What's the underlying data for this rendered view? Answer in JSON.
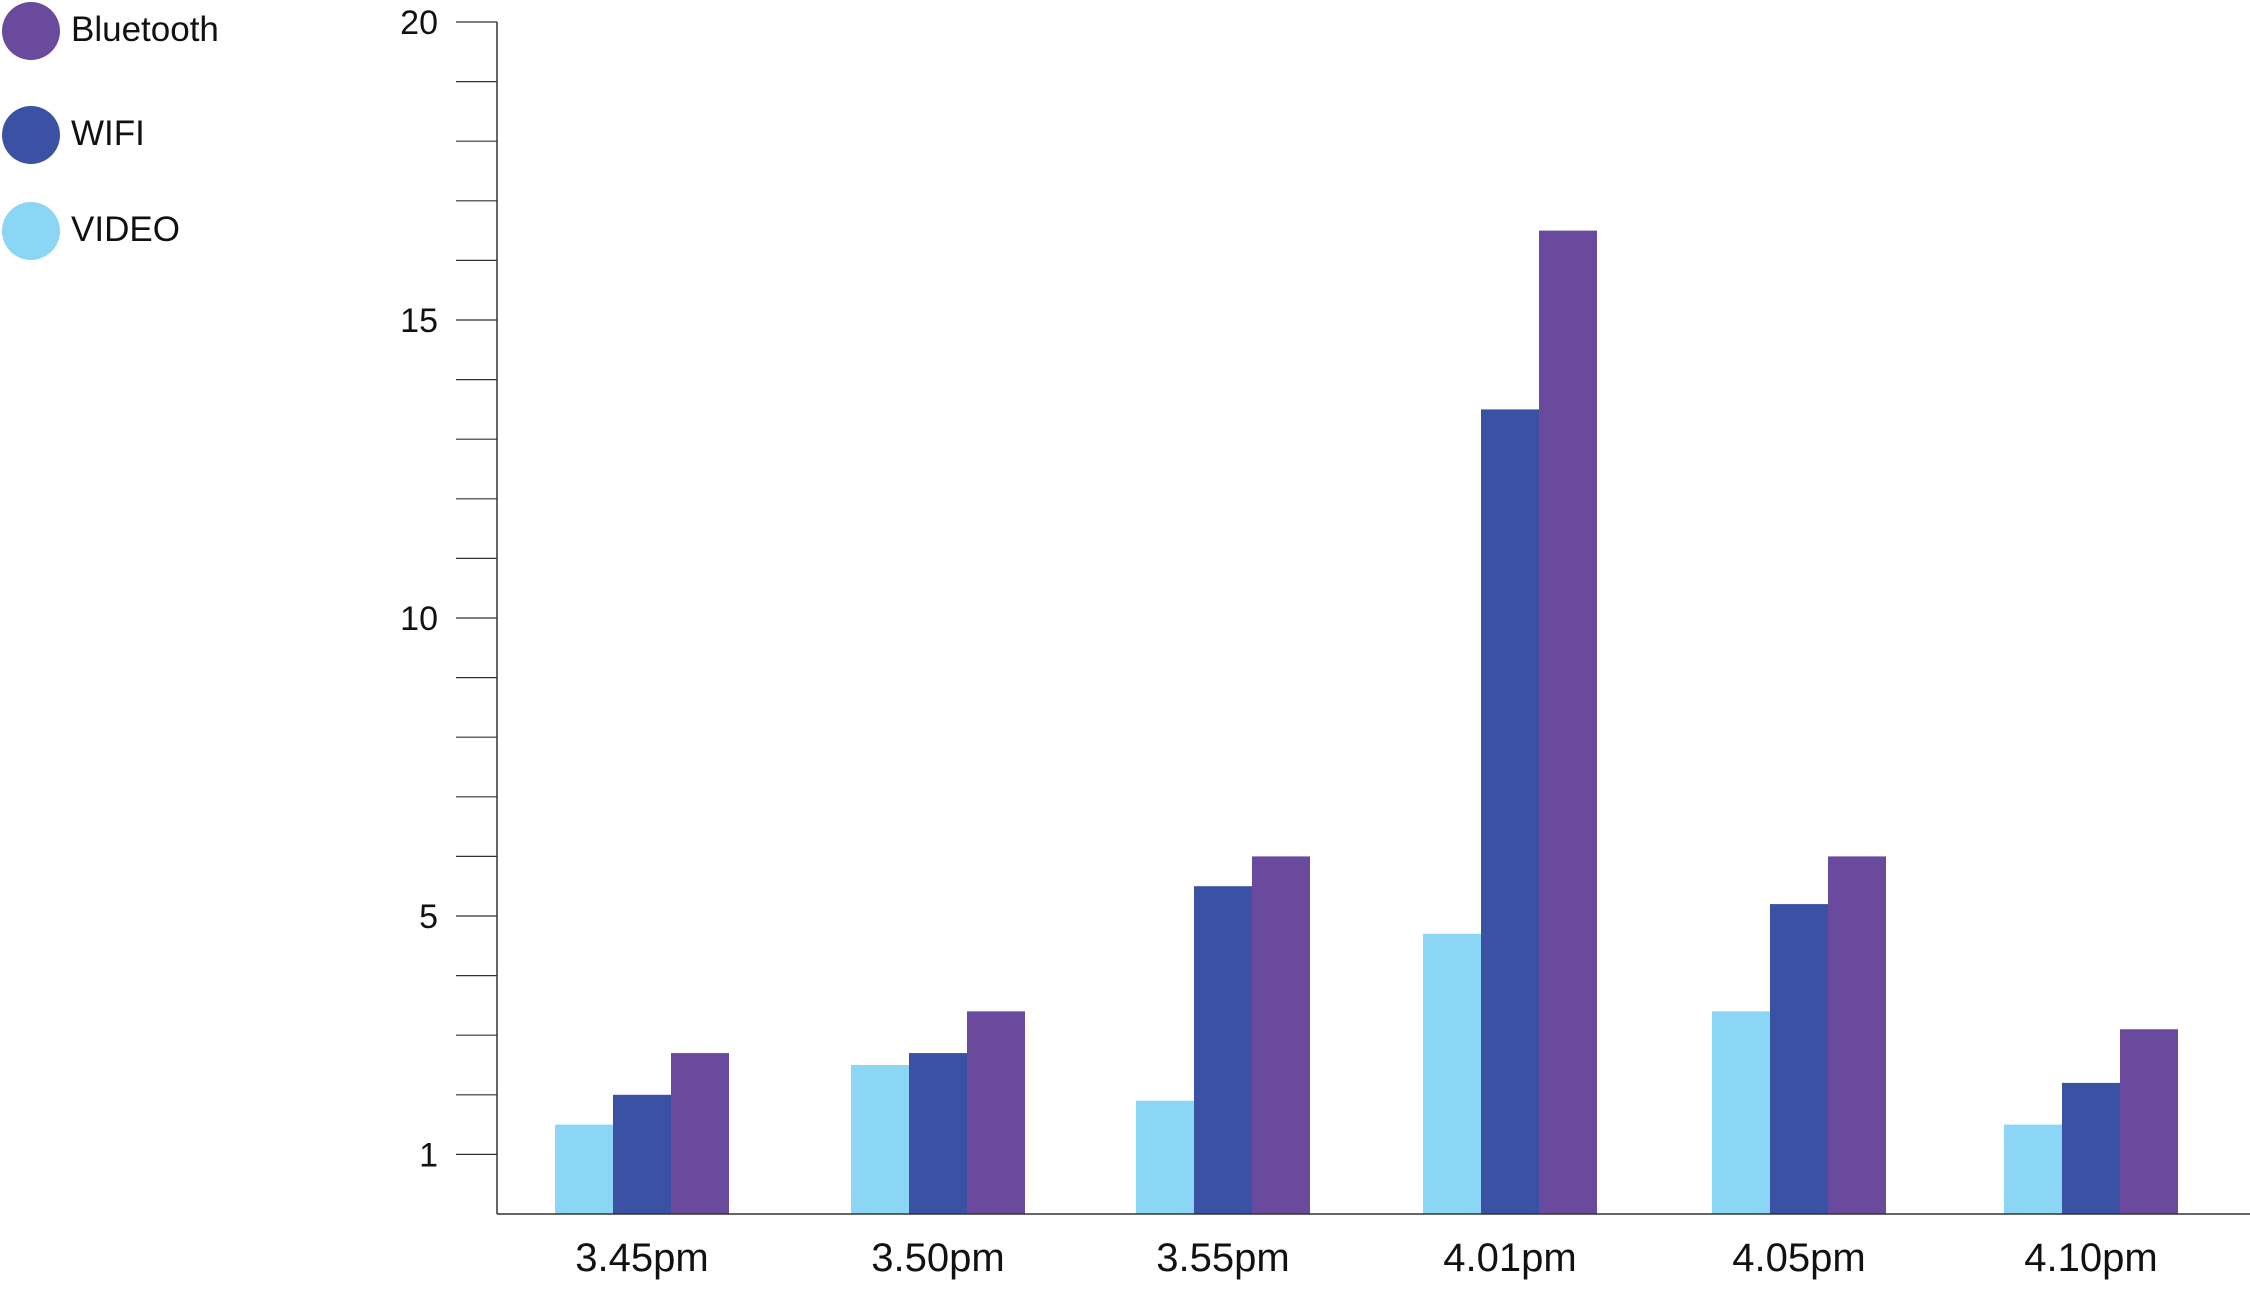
{
  "colors": {
    "video": "#8bd6f5",
    "wifi": "#3b51a3",
    "bluetooth": "#6a4a9c",
    "axis": "#333333"
  },
  "legend": {
    "items": [
      {
        "label": "Bluetooth",
        "color": "#6a4a9c"
      },
      {
        "label": "WIFI",
        "color": "#3b51a3"
      },
      {
        "label": "VIDEO",
        "color": "#8bd6f5"
      }
    ]
  },
  "chart_data": {
    "type": "bar",
    "title": "",
    "xlabel": "",
    "ylabel": "",
    "categories": [
      "3.45pm",
      "3.50pm",
      "3.55pm",
      "4.01pm",
      "4.05pm",
      "4.10pm"
    ],
    "series": [
      {
        "name": "VIDEO",
        "color": "#8bd6f5",
        "values": [
          1.5,
          2.5,
          1.9,
          4.7,
          3.4,
          1.5
        ]
      },
      {
        "name": "WIFI",
        "color": "#3b51a3",
        "values": [
          2.0,
          2.7,
          5.5,
          13.5,
          5.2,
          2.2
        ]
      },
      {
        "name": "Bluetooth",
        "color": "#6a4a9c",
        "values": [
          2.7,
          3.4,
          6.0,
          16.5,
          6.0,
          3.1
        ]
      }
    ],
    "y_tick_labels": [
      "1",
      "5",
      "10",
      "15",
      "20"
    ],
    "y_tick_values": [
      1,
      5,
      10,
      15,
      20
    ],
    "ylim": [
      0,
      20
    ],
    "minor_tick_step": 1,
    "grid": false,
    "legend_position": "top-left"
  }
}
